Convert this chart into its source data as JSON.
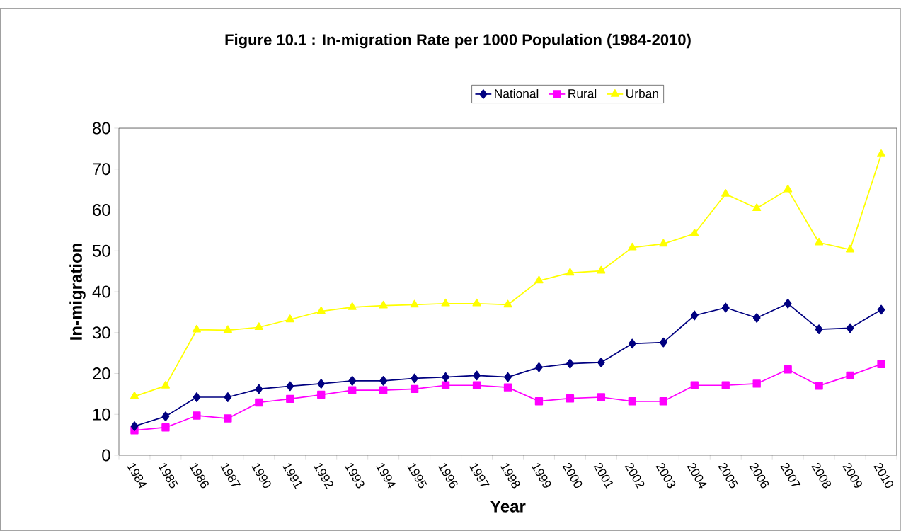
{
  "chart_data": {
    "type": "line",
    "title": "Figure 10.1 : In-migration Rate per 1000 Population (1984-2010)",
    "xlabel": "Year",
    "ylabel": "In-migration",
    "categories": [
      "1984",
      "1985",
      "1986",
      "1987",
      "1990",
      "1991",
      "1992",
      "1993",
      "1994",
      "1995",
      "1996",
      "1997",
      "1998",
      "1999",
      "2000",
      "2001",
      "2002",
      "2003",
      "2004",
      "2005",
      "2006",
      "2007",
      "2008",
      "2009",
      "2010"
    ],
    "series": [
      {
        "name": "National",
        "color": "#000080",
        "marker": "diamond",
        "values": [
          7.1,
          9.5,
          14.2,
          14.2,
          16.2,
          16.9,
          17.5,
          18.2,
          18.2,
          18.8,
          19.1,
          19.5,
          19.1,
          21.5,
          22.4,
          22.7,
          27.3,
          27.6,
          34.2,
          36.1,
          33.6,
          37.1,
          30.8,
          31.1,
          35.6
        ]
      },
      {
        "name": "Rural",
        "color": "#ff00ff",
        "marker": "square",
        "values": [
          6.1,
          6.8,
          9.7,
          9.0,
          12.9,
          13.8,
          14.8,
          15.9,
          15.9,
          16.2,
          17.1,
          17.1,
          16.6,
          13.2,
          13.9,
          14.2,
          13.2,
          13.2,
          17.1,
          17.1,
          17.5,
          21.0,
          17.0,
          19.5,
          22.3
        ]
      },
      {
        "name": "Urban",
        "color": "#ffff00",
        "marker": "triangle",
        "values": [
          14.4,
          17.0,
          30.7,
          30.6,
          31.3,
          33.2,
          35.2,
          36.2,
          36.6,
          36.8,
          37.1,
          37.1,
          36.8,
          42.7,
          44.6,
          45.1,
          50.8,
          51.7,
          54.2,
          63.9,
          60.4,
          65.0,
          52.0,
          50.3,
          73.6
        ]
      }
    ],
    "ylim": [
      0,
      80
    ],
    "yticks": [
      0,
      10,
      20,
      30,
      40,
      50,
      60,
      70,
      80
    ],
    "grid": false,
    "legend": "top",
    "line_style": "solid"
  }
}
